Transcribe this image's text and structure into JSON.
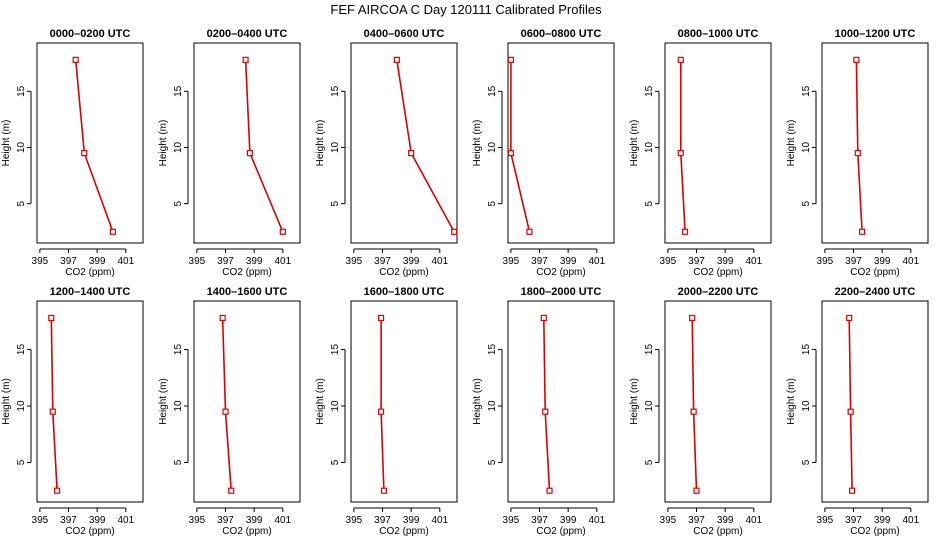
{
  "figure": {
    "title": "FEF AIRCOA C  Day 120111  Calibrated Profiles"
  },
  "chart_data": [
    {
      "type": "line",
      "title": "0000–0200 UTC",
      "xlabel": "CO2 (ppm)",
      "ylabel": "Height (m)",
      "xlim": [
        394.8,
        402.2
      ],
      "ylim": [
        1.5,
        19.3
      ],
      "xticks": [
        395,
        397,
        399,
        401
      ],
      "yticks": [
        5,
        10,
        15
      ],
      "x": [
        400.1,
        398.1,
        397.5
      ],
      "y": [
        2.5,
        9.5,
        17.8
      ],
      "color": "#dd0000"
    },
    {
      "type": "line",
      "title": "0200–0400 UTC",
      "xlabel": "CO2 (ppm)",
      "ylabel": "Height (m)",
      "xlim": [
        394.8,
        402.2
      ],
      "ylim": [
        1.5,
        19.3
      ],
      "xticks": [
        395,
        397,
        399,
        401
      ],
      "yticks": [
        5,
        10,
        15
      ],
      "x": [
        401.0,
        398.7,
        398.4
      ],
      "y": [
        2.5,
        9.5,
        17.8
      ],
      "color": "#dd0000"
    },
    {
      "type": "line",
      "title": "0400–0600 UTC",
      "xlabel": "CO2 (ppm)",
      "ylabel": "Height (m)",
      "xlim": [
        394.8,
        402.2
      ],
      "ylim": [
        1.5,
        19.3
      ],
      "xticks": [
        395,
        397,
        399,
        401
      ],
      "yticks": [
        5,
        10,
        15
      ],
      "x": [
        402.0,
        399.0,
        398.0
      ],
      "y": [
        2.5,
        9.5,
        17.8
      ],
      "color": "#dd0000"
    },
    {
      "type": "line",
      "title": "0600–0800 UTC",
      "xlabel": "CO2 (ppm)",
      "ylabel": "Height (m)",
      "xlim": [
        394.8,
        402.2
      ],
      "ylim": [
        1.5,
        19.3
      ],
      "xticks": [
        395,
        397,
        399,
        401
      ],
      "yticks": [
        5,
        10,
        15
      ],
      "x": [
        396.3,
        395.0,
        395.0
      ],
      "y": [
        2.5,
        9.5,
        17.8
      ],
      "color": "#dd0000"
    },
    {
      "type": "line",
      "title": "0800–1000 UTC",
      "xlabel": "CO2 (ppm)",
      "ylabel": "Height (m)",
      "xlim": [
        394.8,
        402.2
      ],
      "ylim": [
        1.5,
        19.3
      ],
      "xticks": [
        395,
        397,
        399,
        401
      ],
      "yticks": [
        5,
        10,
        15
      ],
      "x": [
        396.2,
        395.9,
        395.9
      ],
      "y": [
        2.5,
        9.5,
        17.8
      ],
      "color": "#dd0000"
    },
    {
      "type": "line",
      "title": "1000–1200 UTC",
      "xlabel": "CO2 (ppm)",
      "ylabel": "Height (m)",
      "xlim": [
        394.8,
        402.2
      ],
      "ylim": [
        1.5,
        19.3
      ],
      "xticks": [
        395,
        397,
        399,
        401
      ],
      "yticks": [
        5,
        10,
        15
      ],
      "x": [
        397.6,
        397.3,
        397.2
      ],
      "y": [
        2.5,
        9.5,
        17.8
      ],
      "color": "#dd0000"
    },
    {
      "type": "line",
      "title": "1200–1400 UTC",
      "xlabel": "CO2 (ppm)",
      "ylabel": "Height (m)",
      "xlim": [
        394.8,
        402.2
      ],
      "ylim": [
        1.5,
        19.3
      ],
      "xticks": [
        395,
        397,
        399,
        401
      ],
      "yticks": [
        5,
        10,
        15
      ],
      "x": [
        396.2,
        395.9,
        395.8
      ],
      "y": [
        2.5,
        9.5,
        17.8
      ],
      "color": "#dd0000"
    },
    {
      "type": "line",
      "title": "1400–1600 UTC",
      "xlabel": "CO2 (ppm)",
      "ylabel": "Height (m)",
      "xlim": [
        394.8,
        402.2
      ],
      "ylim": [
        1.5,
        19.3
      ],
      "xticks": [
        395,
        397,
        399,
        401
      ],
      "yticks": [
        5,
        10,
        15
      ],
      "x": [
        397.4,
        397.0,
        396.8
      ],
      "y": [
        2.5,
        9.5,
        17.8
      ],
      "color": "#dd0000"
    },
    {
      "type": "line",
      "title": "1600–1800 UTC",
      "xlabel": "CO2 (ppm)",
      "ylabel": "Height (m)",
      "xlim": [
        394.8,
        402.2
      ],
      "ylim": [
        1.5,
        19.3
      ],
      "xticks": [
        395,
        397,
        399,
        401
      ],
      "yticks": [
        5,
        10,
        15
      ],
      "x": [
        397.1,
        396.9,
        396.9
      ],
      "y": [
        2.5,
        9.5,
        17.8
      ],
      "color": "#dd0000"
    },
    {
      "type": "line",
      "title": "1800–2000 UTC",
      "xlabel": "CO2 (ppm)",
      "ylabel": "Height (m)",
      "xlim": [
        394.8,
        402.2
      ],
      "ylim": [
        1.5,
        19.3
      ],
      "xticks": [
        395,
        397,
        399,
        401
      ],
      "yticks": [
        5,
        10,
        15
      ],
      "x": [
        397.7,
        397.4,
        397.3
      ],
      "y": [
        2.5,
        9.5,
        17.8
      ],
      "color": "#dd0000"
    },
    {
      "type": "line",
      "title": "2000–2200 UTC",
      "xlabel": "CO2 (ppm)",
      "ylabel": "Height (m)",
      "xlim": [
        394.8,
        402.2
      ],
      "ylim": [
        1.5,
        19.3
      ],
      "xticks": [
        395,
        397,
        399,
        401
      ],
      "yticks": [
        5,
        10,
        15
      ],
      "x": [
        397.0,
        396.8,
        396.7
      ],
      "y": [
        2.5,
        9.5,
        17.8
      ],
      "color": "#dd0000"
    },
    {
      "type": "line",
      "title": "2200–2400 UTC",
      "xlabel": "CO2 (ppm)",
      "ylabel": "Height (m)",
      "xlim": [
        394.8,
        402.2
      ],
      "ylim": [
        1.5,
        19.3
      ],
      "xticks": [
        395,
        397,
        399,
        401
      ],
      "yticks": [
        5,
        10,
        15
      ],
      "x": [
        396.9,
        396.8,
        396.7
      ],
      "y": [
        2.5,
        9.5,
        17.8
      ],
      "color": "#dd0000"
    }
  ]
}
